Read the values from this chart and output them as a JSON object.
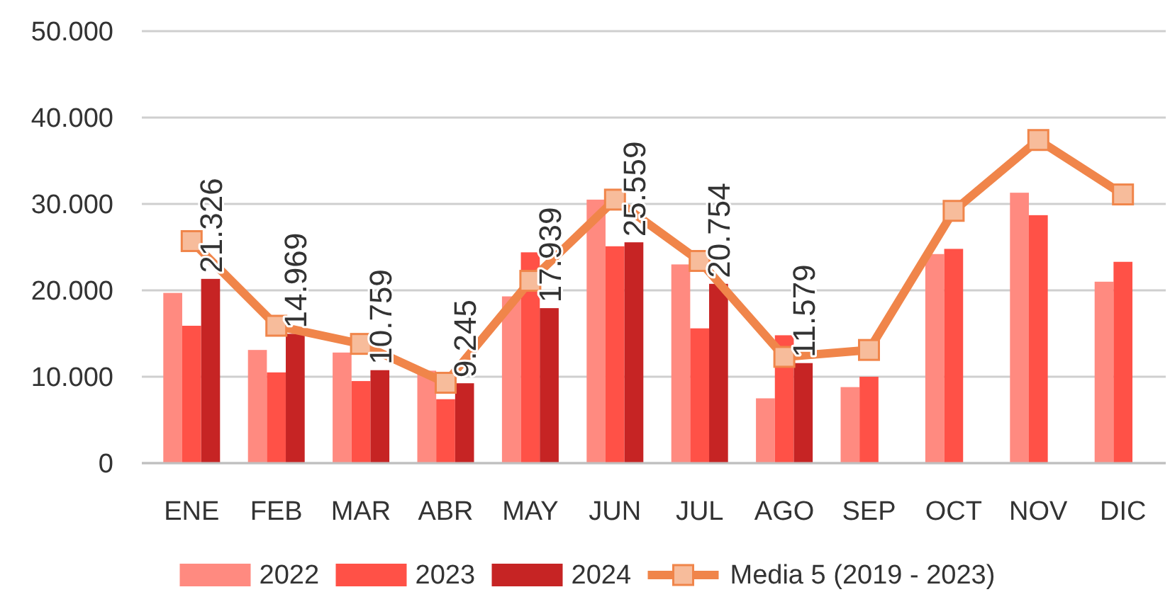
{
  "chart_data": {
    "type": "bar",
    "categories": [
      "ENE",
      "FEB",
      "MAR",
      "ABR",
      "MAY",
      "JUN",
      "JUL",
      "AGO",
      "SEP",
      "OCT",
      "NOV",
      "DIC"
    ],
    "series": [
      {
        "name": "2022",
        "color": "#ff8a80",
        "values": [
          19700,
          13100,
          12800,
          10700,
          19300,
          30500,
          23000,
          7500,
          8800,
          24200,
          31300,
          21000
        ]
      },
      {
        "name": "2023",
        "color": "#ff5147",
        "values": [
          15900,
          10500,
          9500,
          7400,
          24400,
          25100,
          15600,
          14800,
          10000,
          24800,
          28700,
          23300
        ]
      },
      {
        "name": "2024",
        "color": "#c62424",
        "values": [
          21326,
          14969,
          10759,
          9245,
          17939,
          25559,
          20754,
          11579,
          null,
          null,
          null,
          null
        ],
        "value_labels": [
          "21.326",
          "14.969",
          "10.759",
          "9.245",
          "17.939",
          "25.559",
          "20.754",
          "11.579",
          null,
          null,
          null,
          null
        ]
      },
      {
        "name": "Media 5 (2019 - 2023)",
        "type": "line",
        "color": "#f0854a",
        "marker": "square",
        "values": [
          25700,
          15900,
          13800,
          9300,
          21100,
          30500,
          23400,
          12300,
          13100,
          29200,
          37400,
          31100
        ]
      }
    ],
    "ylim": [
      0,
      50000
    ],
    "yticks": [
      {
        "value": 0,
        "label": "0"
      },
      {
        "value": 10000,
        "label": "10.000"
      },
      {
        "value": 20000,
        "label": "20.000"
      },
      {
        "value": 30000,
        "label": "30.000"
      },
      {
        "value": 40000,
        "label": "40.000"
      },
      {
        "value": 50000,
        "label": "50.000"
      }
    ],
    "grid": "y",
    "legend": "bottom"
  }
}
